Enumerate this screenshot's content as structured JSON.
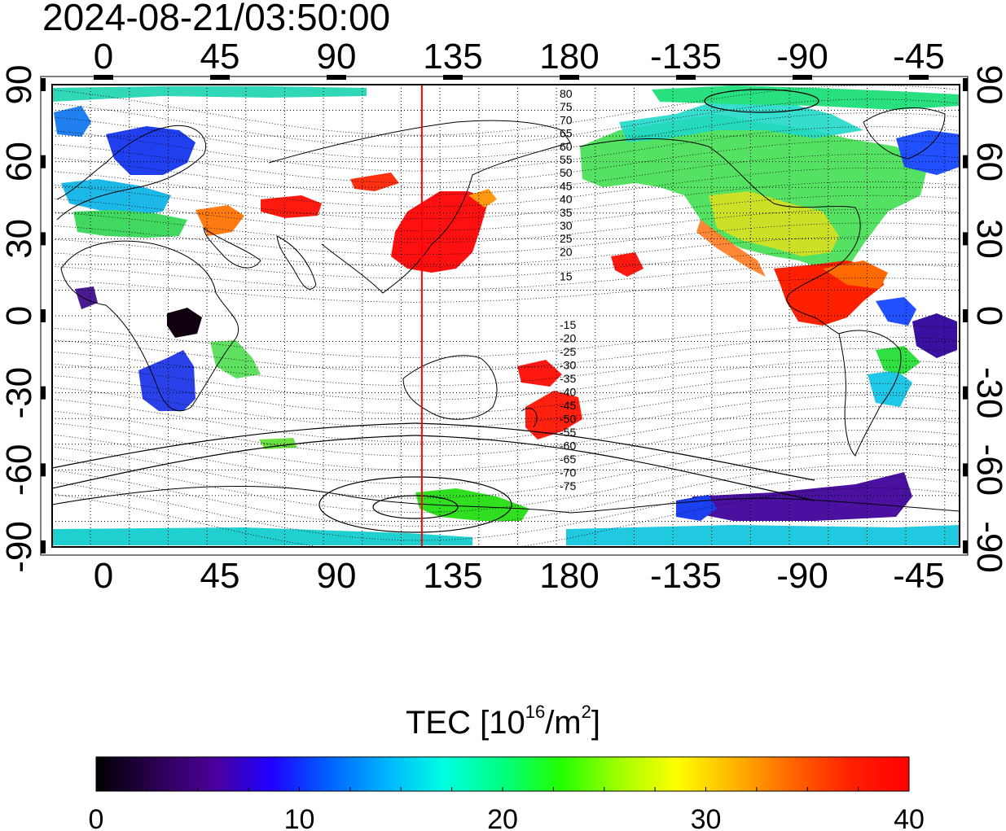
{
  "header": {
    "timestamp": "2024-08-21/03:50:00"
  },
  "map": {
    "top_lon_labels": [
      "0",
      "45",
      "90",
      "135",
      "180",
      "-135",
      "-90",
      "-45"
    ],
    "bottom_lon_labels": [
      "0",
      "45",
      "90",
      "135",
      "180",
      "-135",
      "-90",
      "-45"
    ],
    "left_lat_labels": [
      "90",
      "60",
      "30",
      "0",
      "-30",
      "-60",
      "-90"
    ],
    "right_lat_labels": [
      "90",
      "60",
      "30",
      "0",
      "-30",
      "-60",
      "-90"
    ],
    "marker_longitude": 123,
    "marker_color": "#ff0000",
    "contour_labels_north": [
      "80",
      "75",
      "70",
      "65",
      "60",
      "55",
      "50",
      "45",
      "40",
      "35",
      "30",
      "25",
      "20",
      "15"
    ],
    "contour_labels_south": [
      "-15",
      "-20",
      "-25",
      "-30",
      "-35",
      "-40",
      "-45",
      "-50",
      "-55",
      "-60",
      "-65",
      "-70",
      "-75"
    ]
  },
  "colorbar": {
    "title_prefix": "TEC  [10",
    "title_exp1": "16",
    "title_mid": "/m",
    "title_exp2": "2",
    "title_suffix": "]",
    "tick_labels": [
      "0",
      "10",
      "20",
      "30",
      "40"
    ],
    "min": 0,
    "max": 40,
    "colors": [
      "#000000",
      "#2a0050",
      "#4b0096",
      "#2000ff",
      "#0060ff",
      "#00b4ff",
      "#00ffe0",
      "#00ff80",
      "#22ff00",
      "#a0ff00",
      "#ffff00",
      "#ffb400",
      "#ff6400",
      "#ff2000",
      "#ff0000"
    ]
  }
}
